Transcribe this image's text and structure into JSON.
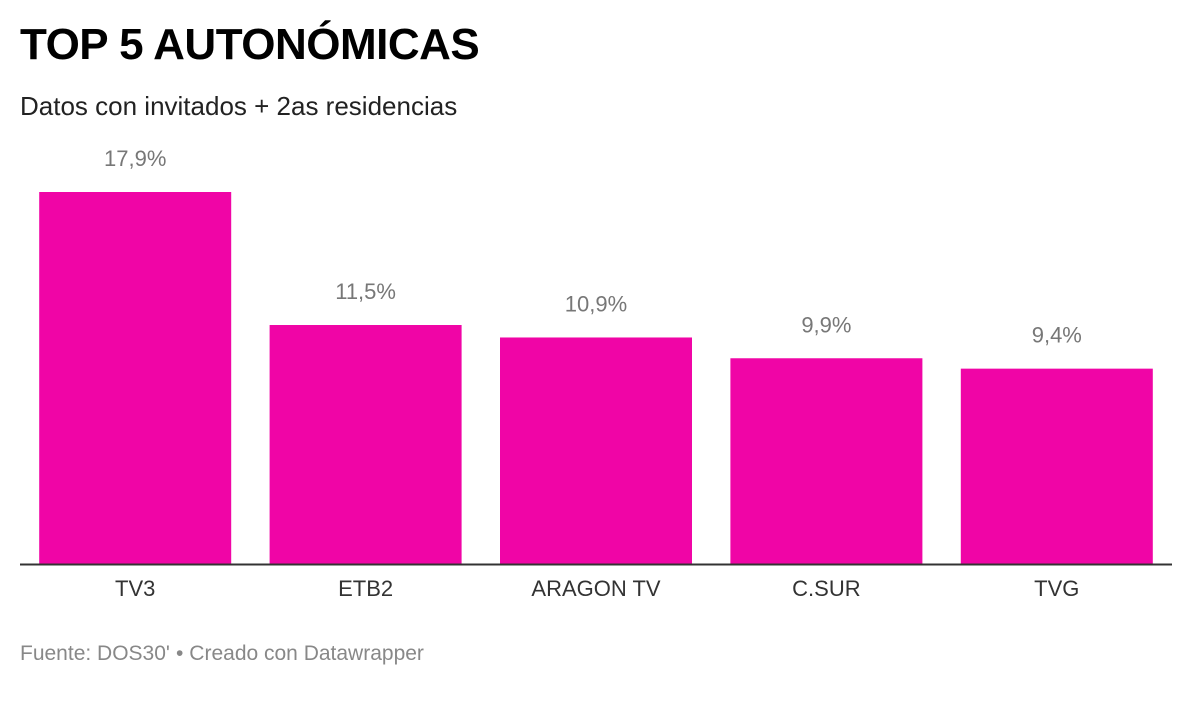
{
  "chart_data": {
    "type": "bar",
    "title": "TOP 5 AUTONÓMICAS",
    "subtitle": "Datos con invitados + 2as residencias",
    "categories": [
      "TV3",
      "ETB2",
      "ARAGON TV",
      "C.SUR",
      "TVG"
    ],
    "values": [
      17.9,
      11.5,
      10.9,
      9.9,
      9.4
    ],
    "value_labels": [
      "17,9%",
      "11,5%",
      "10,9%",
      "9,9%",
      "9,4%"
    ],
    "ylim": [
      0,
      17.9
    ],
    "grid": false,
    "legend": "none",
    "colors": {
      "bar": "#f005a6",
      "value_label": "#777777",
      "category_label": "#333333",
      "baseline": "#333333"
    }
  },
  "footer": {
    "source": "Fuente: DOS30'",
    "separator": "•",
    "credit": "Creado con Datawrapper"
  }
}
